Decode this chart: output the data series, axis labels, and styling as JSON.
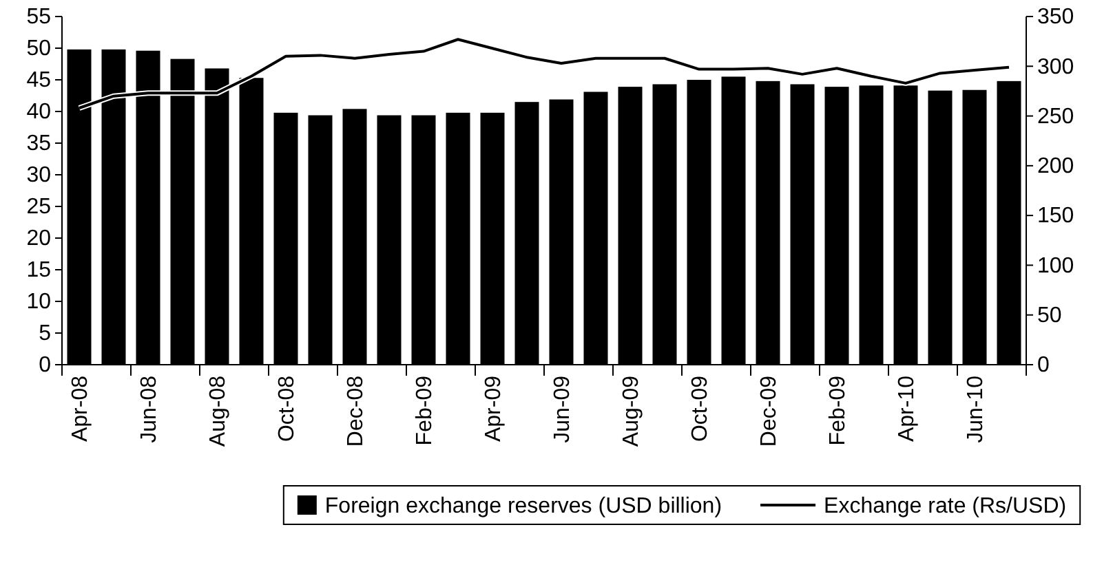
{
  "chart_data": {
    "type": "bar",
    "categories": [
      "Apr-08",
      null,
      "Jun-08",
      null,
      "Aug-08",
      null,
      "Oct-08",
      null,
      "Dec-08",
      null,
      "Feb-09",
      null,
      "Apr-09",
      null,
      "Jun-09",
      null,
      "Aug-09",
      null,
      "Oct-09",
      null,
      "Dec-09",
      null,
      "Feb-09",
      null,
      "Apr-10",
      null,
      "Jun-10",
      null
    ],
    "series": [
      {
        "name": "Foreign exchange reserves (USD billion)",
        "color": "#000000",
        "values": [
          49.8,
          49.8,
          49.6,
          48.3,
          46.8,
          45.3,
          39.8,
          39.4,
          40.4,
          39.4,
          39.4,
          39.8,
          39.8,
          41.5,
          41.9,
          43.1,
          43.9,
          44.3,
          45.0,
          45.5,
          44.8,
          44.3,
          43.9,
          44.1,
          44.1,
          43.3,
          43.4,
          44.8
        ]
      },
      {
        "name": "Exchange rate (Rs/USD)",
        "type": "line",
        "axis": "y2",
        "color": "#000000",
        "values": [
          258,
          270,
          273,
          273,
          273,
          290,
          310,
          311,
          308,
          312,
          315,
          327,
          318,
          309,
          303,
          308,
          308,
          308,
          297,
          297,
          298,
          292,
          298,
          290,
          283,
          293,
          296,
          299
        ]
      }
    ],
    "ylim": [
      0,
      55
    ],
    "yticks": [
      0,
      5,
      10,
      15,
      20,
      25,
      30,
      35,
      40,
      45,
      50,
      55
    ],
    "y2lim": [
      0,
      350
    ],
    "y2ticks": [
      0,
      50,
      100,
      150,
      200,
      250,
      300,
      350
    ],
    "grid": false,
    "legend": "bottom"
  }
}
